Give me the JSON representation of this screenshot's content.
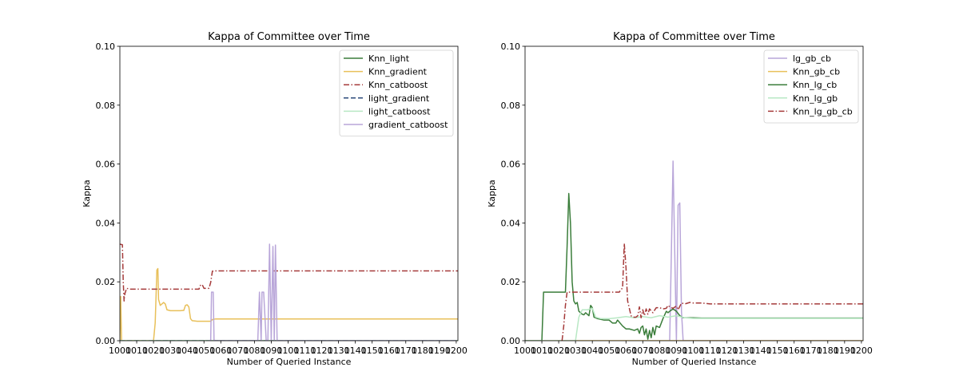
{
  "chart_data": [
    {
      "type": "line",
      "title": "Kappa of Committee over Time",
      "xlabel": "Number of Queried Instance",
      "ylabel": "Kappa",
      "xlim": [
        1000,
        1201
      ],
      "ylim": [
        0,
        0.1
      ],
      "xticks": [
        1000,
        1010,
        1020,
        1030,
        1040,
        1050,
        1060,
        1070,
        1080,
        1090,
        1100,
        1110,
        1120,
        1130,
        1140,
        1150,
        1160,
        1170,
        1180,
        1190,
        1200
      ],
      "yticks": [
        "0.00",
        "0.02",
        "0.04",
        "0.06",
        "0.08",
        "0.10"
      ],
      "legend_position": "upper right",
      "series": [
        {
          "name": "Knn_light",
          "color": "#3a7d3a",
          "dash": "solid",
          "points": [
            [
              1000,
              0
            ],
            [
              1201,
              0
            ]
          ]
        },
        {
          "name": "Knn_gradient",
          "color": "#e8c05a",
          "dash": "solid",
          "points": [
            [
              1000,
              0.0
            ],
            [
              1000.5,
              0.015
            ],
            [
              1001,
              0.0
            ],
            [
              1020,
              0.0
            ],
            [
              1021,
              0.006
            ],
            [
              1022,
              0.024
            ],
            [
              1022.6,
              0.0245
            ],
            [
              1023,
              0.014
            ],
            [
              1024,
              0.012
            ],
            [
              1025,
              0.0125
            ],
            [
              1026,
              0.013
            ],
            [
              1027,
              0.0125
            ],
            [
              1028,
              0.0105
            ],
            [
              1030,
              0.0102
            ],
            [
              1032,
              0.0102
            ],
            [
              1036,
              0.0102
            ],
            [
              1038,
              0.0103
            ],
            [
              1039,
              0.012
            ],
            [
              1040,
              0.0122
            ],
            [
              1041,
              0.0115
            ],
            [
              1042,
              0.0075
            ],
            [
              1043,
              0.0068
            ],
            [
              1046,
              0.0066
            ],
            [
              1052,
              0.0066
            ],
            [
              1054,
              0.0066
            ],
            [
              1055,
              0.0072
            ],
            [
              1057,
              0.0074
            ],
            [
              1201,
              0.0074
            ]
          ]
        },
        {
          "name": "Knn_catboost",
          "color": "#a53a3a",
          "dash": "dashdot",
          "points": [
            [
              1000,
              0.0328
            ],
            [
              1001.5,
              0.0326
            ],
            [
              1002,
              0.02
            ],
            [
              1002.5,
              0.0135
            ],
            [
              1003,
              0.016
            ],
            [
              1004,
              0.0178
            ],
            [
              1006,
              0.0175
            ],
            [
              1010,
              0.0175
            ],
            [
              1020,
              0.0175
            ],
            [
              1030,
              0.0175
            ],
            [
              1040,
              0.0175
            ],
            [
              1045,
              0.0175
            ],
            [
              1047,
              0.0175
            ],
            [
              1048,
              0.019
            ],
            [
              1049,
              0.019
            ],
            [
              1050,
              0.0178
            ],
            [
              1053,
              0.0178
            ],
            [
              1054,
              0.0198
            ],
            [
              1055,
              0.0236
            ],
            [
              1056,
              0.0237
            ],
            [
              1201,
              0.0237
            ]
          ]
        },
        {
          "name": "light_gradient",
          "color": "#2b4a7a",
          "dash": "dashed",
          "points": [
            [
              1000,
              0
            ],
            [
              1201,
              0
            ]
          ]
        },
        {
          "name": "light_catboost",
          "color": "#b8e8c4",
          "dash": "solid",
          "points": [
            [
              1000,
              0
            ],
            [
              1201,
              0
            ]
          ]
        },
        {
          "name": "gradient_catboost",
          "color": "#b9a6d9",
          "dash": "solid",
          "points": [
            [
              1053,
              0.0
            ],
            [
              1054,
              0.0
            ],
            [
              1054.5,
              0.0165
            ],
            [
              1055.5,
              0.0165
            ],
            [
              1056,
              0.0
            ],
            [
              1082,
              0.0
            ],
            [
              1083,
              0.0165
            ],
            [
              1084,
              0.0
            ],
            [
              1084.5,
              0.0165
            ],
            [
              1085.5,
              0.0165
            ],
            [
              1087,
              0.0
            ],
            [
              1088,
              0.0
            ],
            [
              1089,
              0.0328
            ],
            [
              1090,
              0.0
            ],
            [
              1091,
              0.032
            ],
            [
              1091.8,
              0.0
            ],
            [
              1092.5,
              0.0325
            ],
            [
              1093.5,
              0.0
            ],
            [
              1200,
              0.0
            ]
          ]
        }
      ]
    },
    {
      "type": "line",
      "title": "Kappa of Committee over Time",
      "xlabel": "Number of Queried Instance",
      "ylabel": "Kappa",
      "xlim": [
        1000,
        1201
      ],
      "ylim": [
        0,
        0.1
      ],
      "xticks": [
        1000,
        1010,
        1020,
        1030,
        1040,
        1050,
        1060,
        1070,
        1080,
        1090,
        1100,
        1110,
        1120,
        1130,
        1140,
        1150,
        1160,
        1170,
        1180,
        1190,
        1200
      ],
      "yticks": [
        "0.00",
        "0.02",
        "0.04",
        "0.06",
        "0.08",
        "0.10"
      ],
      "legend_position": "upper right",
      "series": [
        {
          "name": "lg_gb_cb",
          "color": "#b9a6d9",
          "dash": "solid",
          "points": [
            [
              1086,
              0.0
            ],
            [
              1087,
              0.03
            ],
            [
              1088,
              0.061
            ],
            [
              1089,
              0.03
            ],
            [
              1090,
              0.0
            ],
            [
              1091,
              0.046
            ],
            [
              1092,
              0.0468
            ],
            [
              1093,
              0.01
            ],
            [
              1094,
              0.0
            ],
            [
              1200,
              0.0
            ]
          ]
        },
        {
          "name": "Knn_gb_cb",
          "color": "#e8c05a",
          "dash": "solid",
          "points": [
            [
              1000,
              0
            ],
            [
              1201,
              0
            ]
          ]
        },
        {
          "name": "Knn_lg_cb",
          "color": "#3a7d3a",
          "dash": "solid",
          "points": [
            [
              1000,
              0.0
            ],
            [
              1010,
              0.0
            ],
            [
              1011,
              0.0165
            ],
            [
              1020,
              0.0165
            ],
            [
              1024,
              0.0165
            ],
            [
              1025,
              0.032
            ],
            [
              1026,
              0.05
            ],
            [
              1027,
              0.04
            ],
            [
              1028,
              0.02
            ],
            [
              1029,
              0.0135
            ],
            [
              1030,
              0.0125
            ],
            [
              1031,
              0.013
            ],
            [
              1032,
              0.01
            ],
            [
              1033,
              0.0095
            ],
            [
              1034,
              0.009
            ],
            [
              1035,
              0.0088
            ],
            [
              1036,
              0.0095
            ],
            [
              1038,
              0.0085
            ],
            [
              1039,
              0.012
            ],
            [
              1040,
              0.0112
            ],
            [
              1041,
              0.008
            ],
            [
              1043,
              0.0075
            ],
            [
              1047,
              0.007
            ],
            [
              1050,
              0.007
            ],
            [
              1052,
              0.006
            ],
            [
              1054,
              0.006
            ],
            [
              1055,
              0.007
            ],
            [
              1058,
              0.005
            ],
            [
              1060,
              0.004
            ],
            [
              1062,
              0.004
            ],
            [
              1065,
              0.0035
            ],
            [
              1067,
              0.004
            ],
            [
              1068,
              0.0025
            ],
            [
              1069,
              0.0045
            ],
            [
              1070,
              0.005
            ],
            [
              1071,
              0.002
            ],
            [
              1072,
              0.004
            ],
            [
              1073,
              0.0005
            ],
            [
              1074,
              0.0035
            ],
            [
              1075,
              0.001
            ],
            [
              1076,
              0.0045
            ],
            [
              1077,
              0.002
            ],
            [
              1078,
              0.005
            ],
            [
              1080,
              0.0045
            ],
            [
              1082,
              0.0075
            ],
            [
              1084,
              0.01
            ],
            [
              1085,
              0.0095
            ],
            [
              1086,
              0.01
            ],
            [
              1088,
              0.0108
            ],
            [
              1090,
              0.01
            ],
            [
              1092,
              0.0085
            ],
            [
              1094,
              0.0078
            ],
            [
              1100,
              0.0078
            ],
            [
              1105,
              0.0077
            ],
            [
              1201,
              0.0077
            ]
          ]
        },
        {
          "name": "Knn_lg_gb",
          "color": "#b8e8c4",
          "dash": "solid",
          "points": [
            [
              1000,
              0.0
            ],
            [
              1030,
              0.0
            ],
            [
              1032,
              0.008
            ],
            [
              1034,
              0.0105
            ],
            [
              1037,
              0.0105
            ],
            [
              1039,
              0.0108
            ],
            [
              1040,
              0.011
            ],
            [
              1042,
              0.008
            ],
            [
              1045,
              0.0075
            ],
            [
              1050,
              0.0075
            ],
            [
              1055,
              0.0078
            ],
            [
              1060,
              0.0082
            ],
            [
              1065,
              0.0078
            ],
            [
              1070,
              0.0082
            ],
            [
              1075,
              0.0078
            ],
            [
              1080,
              0.0085
            ],
            [
              1085,
              0.008
            ],
            [
              1090,
              0.0085
            ],
            [
              1095,
              0.0078
            ],
            [
              1100,
              0.0076
            ],
            [
              1201,
              0.0076
            ]
          ]
        },
        {
          "name": "Knn_lg_gb_cb",
          "color": "#a53a3a",
          "dash": "dashdot",
          "points": [
            [
              1022,
              0.0
            ],
            [
              1023,
              0.005
            ],
            [
              1024,
              0.012
            ],
            [
              1025,
              0.0165
            ],
            [
              1030,
              0.0165
            ],
            [
              1040,
              0.0165
            ],
            [
              1050,
              0.0165
            ],
            [
              1056,
              0.0165
            ],
            [
              1058,
              0.018
            ],
            [
              1059,
              0.033
            ],
            [
              1060,
              0.025
            ],
            [
              1061,
              0.0135
            ],
            [
              1062,
              0.011
            ],
            [
              1063,
              0.0085
            ],
            [
              1064,
              0.008
            ],
            [
              1066,
              0.008
            ],
            [
              1067,
              0.0085
            ],
            [
              1068,
              0.0115
            ],
            [
              1069,
              0.0078
            ],
            [
              1070,
              0.0105
            ],
            [
              1071,
              0.0085
            ],
            [
              1072,
              0.0108
            ],
            [
              1073,
              0.009
            ],
            [
              1074,
              0.0108
            ],
            [
              1076,
              0.0095
            ],
            [
              1078,
              0.0112
            ],
            [
              1080,
              0.0112
            ],
            [
              1082,
              0.0108
            ],
            [
              1084,
              0.011
            ],
            [
              1085,
              0.012
            ],
            [
              1086,
              0.0115
            ],
            [
              1088,
              0.011
            ],
            [
              1090,
              0.0118
            ],
            [
              1091,
              0.0105
            ],
            [
              1093,
              0.0128
            ],
            [
              1095,
              0.0125
            ],
            [
              1098,
              0.013
            ],
            [
              1100,
              0.0128
            ],
            [
              1105,
              0.0128
            ],
            [
              1110,
              0.0125
            ],
            [
              1201,
              0.0125
            ]
          ]
        }
      ]
    }
  ]
}
